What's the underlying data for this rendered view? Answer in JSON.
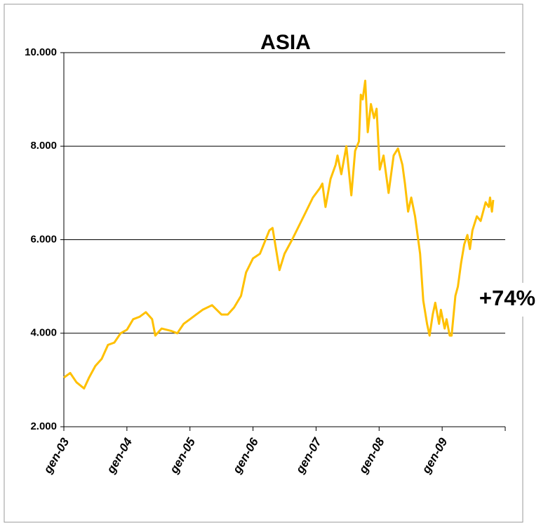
{
  "chart_data": {
    "type": "line",
    "title": "ASIA",
    "annotation": "+74%",
    "series": [
      {
        "color": "#FFC000",
        "x": [
          2003.0,
          2003.1,
          2003.2,
          2003.32,
          2003.4,
          2003.5,
          2003.6,
          2003.7,
          2003.8,
          2003.9,
          2004.0,
          2004.1,
          2004.2,
          2004.3,
          2004.4,
          2004.45,
          2004.55,
          2004.7,
          2004.8,
          2004.9,
          2005.0,
          2005.1,
          2005.2,
          2005.35,
          2005.5,
          2005.6,
          2005.7,
          2005.81,
          2005.89,
          2006.0,
          2006.11,
          2006.26,
          2006.31,
          2006.42,
          2006.5,
          2006.62,
          2006.73,
          2006.84,
          2006.95,
          2007.06,
          2007.1,
          2007.15,
          2007.23,
          2007.31,
          2007.34,
          2007.4,
          2007.48,
          2007.56,
          2007.62,
          2007.68,
          2007.71,
          2007.74,
          2007.78,
          2007.82,
          2007.87,
          2007.92,
          2007.96,
          2008.01,
          2008.07,
          2008.15,
          2008.23,
          2008.3,
          2008.37,
          2008.41,
          2008.46,
          2008.51,
          2008.57,
          2008.65,
          2008.7,
          2008.76,
          2008.8,
          2008.85,
          2008.89,
          2008.95,
          2008.98,
          2009.04,
          2009.07,
          2009.12,
          2009.15,
          2009.21,
          2009.25,
          2009.3,
          2009.35,
          2009.4,
          2009.44,
          2009.48,
          2009.55,
          2009.61,
          2009.69,
          2009.74,
          2009.76,
          2009.79,
          2009.81
        ],
        "values": [
          3050,
          3150,
          2950,
          2820,
          3050,
          3300,
          3450,
          3750,
          3800,
          4000,
          4075,
          4300,
          4350,
          4450,
          4300,
          3950,
          4100,
          4050,
          4000,
          4200,
          4300,
          4400,
          4500,
          4600,
          4400,
          4400,
          4550,
          4800,
          5300,
          5600,
          5700,
          6200,
          6250,
          5350,
          5700,
          6000,
          6300,
          6600,
          6900,
          7100,
          7200,
          6700,
          7300,
          7600,
          7800,
          7400,
          8000,
          6950,
          7900,
          8100,
          9100,
          9000,
          9400,
          8300,
          8900,
          8600,
          8800,
          7500,
          7800,
          7000,
          7800,
          7950,
          7600,
          7200,
          6600,
          6900,
          6500,
          5700,
          4700,
          4200,
          3950,
          4400,
          4650,
          4200,
          4500,
          4100,
          4300,
          3950,
          3950,
          4800,
          5000,
          5500,
          5900,
          6100,
          5800,
          6200,
          6500,
          6400,
          6800,
          6700,
          6900,
          6600,
          6850
        ]
      }
    ],
    "xlim": [
      2003,
      2010
    ],
    "xticks": [
      {
        "value": 2003,
        "label": "gen-03"
      },
      {
        "value": 2004,
        "label": "gen-04"
      },
      {
        "value": 2005,
        "label": "gen-05"
      },
      {
        "value": 2006,
        "label": "gen-06"
      },
      {
        "value": 2007,
        "label": "gen-07"
      },
      {
        "value": 2008,
        "label": "gen-08"
      },
      {
        "value": 2009,
        "label": "gen-09"
      },
      {
        "value": 2010,
        "label": ""
      }
    ],
    "ylim": [
      2000,
      10000
    ],
    "yticks": [
      {
        "value": 2000,
        "label": "2.000"
      },
      {
        "value": 4000,
        "label": "4.000"
      },
      {
        "value": 6000,
        "label": "6.000"
      },
      {
        "value": 8000,
        "label": "8.000"
      },
      {
        "value": 10000,
        "label": "10.000"
      }
    ],
    "grid": true
  }
}
